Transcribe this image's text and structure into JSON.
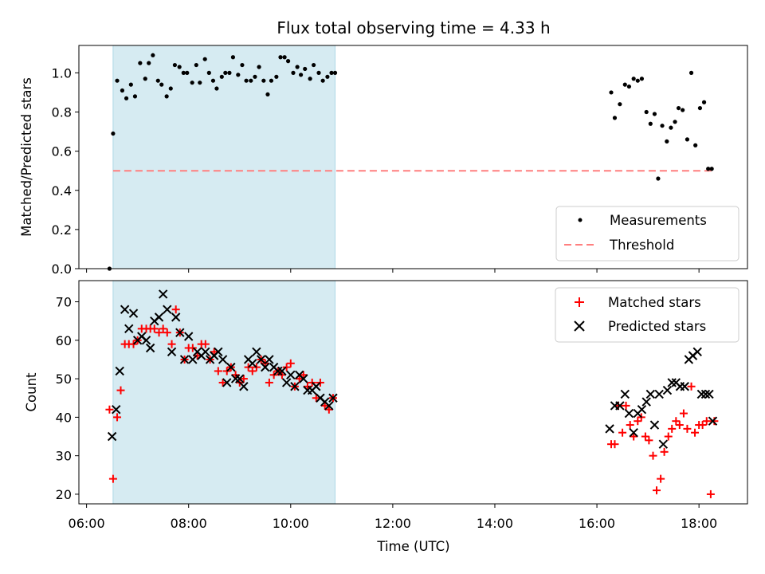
{
  "chart_data": {
    "type": "scatter",
    "title": "Flux total observing time = 4.33 h",
    "xlabel": "Time (UTC)",
    "x_ticks": [
      "06:00",
      "08:00",
      "10:00",
      "12:00",
      "14:00",
      "16:00",
      "18:00"
    ],
    "xlim_hours": [
      5.85,
      18.95
    ],
    "shaded_span_hours": [
      6.52,
      10.87
    ],
    "shade_color": "#add8e6",
    "panels": [
      {
        "ylabel": "Matched/Predicted stars",
        "ylim": [
          0,
          1.14
        ],
        "y_ticks": [
          "0.0",
          "0.2",
          "0.4",
          "0.6",
          "0.8",
          "1.0"
        ],
        "y_tick_values": [
          0,
          0.2,
          0.4,
          0.6,
          0.8,
          1.0
        ],
        "threshold": 0.5,
        "threshold_x": [
          6.52,
          18.25
        ],
        "threshold_color": "#ff7f7f",
        "legend": {
          "position": "lower-right",
          "entries": [
            "Measurements",
            "Threshold"
          ]
        },
        "series": [
          {
            "name": "Measurements",
            "color": "#000000",
            "x": [
              6.45,
              6.52,
              6.6,
              6.7,
              6.78,
              6.87,
              6.95,
              7.05,
              7.15,
              7.22,
              7.3,
              7.4,
              7.47,
              7.57,
              7.65,
              7.73,
              7.82,
              7.9,
              7.97,
              8.07,
              8.15,
              8.22,
              8.32,
              8.4,
              8.48,
              8.55,
              8.65,
              8.72,
              8.8,
              8.87,
              8.97,
              9.05,
              9.13,
              9.22,
              9.3,
              9.38,
              9.47,
              9.55,
              9.62,
              9.72,
              9.8,
              9.88,
              9.95,
              10.05,
              10.13,
              10.2,
              10.28,
              10.38,
              10.45,
              10.55,
              10.63,
              10.72,
              10.8,
              10.87,
              16.28,
              16.35,
              16.45,
              16.55,
              16.63,
              16.72,
              16.8,
              16.88,
              16.97,
              17.05,
              17.13,
              17.2,
              17.28,
              17.37,
              17.45,
              17.53,
              17.6,
              17.68,
              17.77,
              17.85,
              17.93,
              18.02,
              18.1,
              18.18,
              18.25
            ],
            "y": [
              0.0,
              0.69,
              0.96,
              0.91,
              0.87,
              0.94,
              0.88,
              1.05,
              0.97,
              1.05,
              1.09,
              0.96,
              0.94,
              0.88,
              0.92,
              1.04,
              1.03,
              1.0,
              1.0,
              0.95,
              1.04,
              0.95,
              1.07,
              1.0,
              0.96,
              0.92,
              0.98,
              1.0,
              1.0,
              1.08,
              0.99,
              1.04,
              0.96,
              0.96,
              0.98,
              1.03,
              0.96,
              0.89,
              0.96,
              0.98,
              1.08,
              1.08,
              1.06,
              1.0,
              1.03,
              0.99,
              1.02,
              0.97,
              1.04,
              1.0,
              0.96,
              0.98,
              1.0,
              1.0,
              0.9,
              0.77,
              0.84,
              0.94,
              0.93,
              0.97,
              0.96,
              0.97,
              0.8,
              0.74,
              0.79,
              0.46,
              0.73,
              0.65,
              0.72,
              0.75,
              0.82,
              0.81,
              0.66,
              1.0,
              0.63,
              0.82,
              0.85,
              0.51,
              0.51
            ]
          }
        ]
      },
      {
        "ylabel": "Count",
        "ylim": [
          17.5,
          75.5
        ],
        "y_ticks": [
          "20",
          "30",
          "40",
          "50",
          "60",
          "70"
        ],
        "y_tick_values": [
          20,
          30,
          40,
          50,
          60,
          70
        ],
        "legend": {
          "position": "upper-right",
          "entries": [
            "Matched stars",
            "Predicted stars"
          ]
        },
        "series": [
          {
            "name": "Matched stars",
            "marker": "plus",
            "color": "#ff0000",
            "x": [
              6.45,
              6.52,
              6.6,
              6.67,
              6.75,
              6.83,
              6.92,
              7.0,
              7.08,
              7.17,
              7.25,
              7.33,
              7.42,
              7.5,
              7.58,
              7.67,
              7.75,
              7.83,
              7.92,
              8.0,
              8.08,
              8.17,
              8.25,
              8.33,
              8.42,
              8.5,
              8.58,
              8.67,
              8.75,
              8.83,
              8.92,
              9.0,
              9.08,
              9.17,
              9.25,
              9.33,
              9.42,
              9.5,
              9.58,
              9.67,
              9.75,
              9.83,
              9.92,
              10.0,
              10.08,
              10.17,
              10.25,
              10.33,
              10.42,
              10.5,
              10.58,
              10.67,
              10.75,
              10.83,
              16.28,
              16.35,
              16.42,
              16.5,
              16.57,
              16.65,
              16.72,
              16.8,
              16.87,
              16.95,
              17.02,
              17.1,
              17.17,
              17.25,
              17.32,
              17.4,
              17.47,
              17.55,
              17.62,
              17.7,
              17.77,
              17.85,
              17.92,
              18.0,
              18.07,
              18.15,
              18.23,
              18.3
            ],
            "y": [
              42,
              24,
              40,
              47,
              59,
              59,
              59,
              60,
              63,
              63,
              63,
              63,
              62,
              63,
              62,
              59,
              68,
              62,
              55,
              58,
              58,
              56,
              59,
              59,
              55,
              57,
              52,
              49,
              52,
              53,
              51,
              49,
              50,
              53,
              52,
              53,
              55,
              54,
              49,
              51,
              52,
              51,
              53,
              54,
              48,
              50,
              51,
              48,
              49,
              45,
              49,
              43,
              42,
              45,
              33,
              33,
              43,
              36,
              43,
              38,
              35,
              39,
              40,
              35,
              34,
              30,
              21,
              24,
              31,
              35,
              37,
              39,
              38,
              41,
              37,
              48,
              36,
              38,
              38,
              39,
              20,
              39
            ]
          },
          {
            "name": "Predicted stars",
            "marker": "x",
            "color": "#000000",
            "x": [
              6.5,
              6.58,
              6.65,
              6.75,
              6.83,
              6.92,
              7.0,
              7.08,
              7.17,
              7.25,
              7.33,
              7.42,
              7.5,
              7.58,
              7.67,
              7.75,
              7.83,
              7.92,
              8.0,
              8.08,
              8.17,
              8.25,
              8.33,
              8.42,
              8.5,
              8.58,
              8.67,
              8.75,
              8.83,
              8.92,
              9.0,
              9.08,
              9.17,
              9.25,
              9.33,
              9.42,
              9.5,
              9.58,
              9.67,
              9.75,
              9.83,
              9.92,
              10.0,
              10.08,
              10.17,
              10.25,
              10.33,
              10.42,
              10.5,
              10.58,
              10.67,
              10.75,
              10.83,
              16.25,
              16.35,
              16.45,
              16.55,
              16.63,
              16.72,
              16.8,
              16.88,
              16.97,
              17.05,
              17.13,
              17.22,
              17.3,
              17.38,
              17.47,
              17.55,
              17.63,
              17.72,
              17.8,
              17.88,
              17.97,
              18.05,
              18.13,
              18.2,
              18.27
            ],
            "y": [
              35,
              42,
              52,
              68,
              63,
              67,
              60,
              61,
              60,
              58,
              65,
              66,
              72,
              68,
              57,
              66,
              62,
              55,
              61,
              55,
              57,
              56,
              57,
              55,
              56,
              57,
              55,
              49,
              53,
              50,
              50,
              48,
              55,
              54,
              57,
              55,
              53,
              55,
              53,
              52,
              52,
              49,
              51,
              48,
              51,
              50,
              47,
              47,
              48,
              45,
              44,
              43,
              45,
              37,
              43,
              43,
              46,
              41,
              36,
              41,
              42,
              44,
              46,
              38,
              46,
              33,
              47,
              49,
              49,
              48,
              48,
              55,
              56,
              57,
              46,
              46,
              46,
              39
            ]
          }
        ]
      }
    ]
  }
}
